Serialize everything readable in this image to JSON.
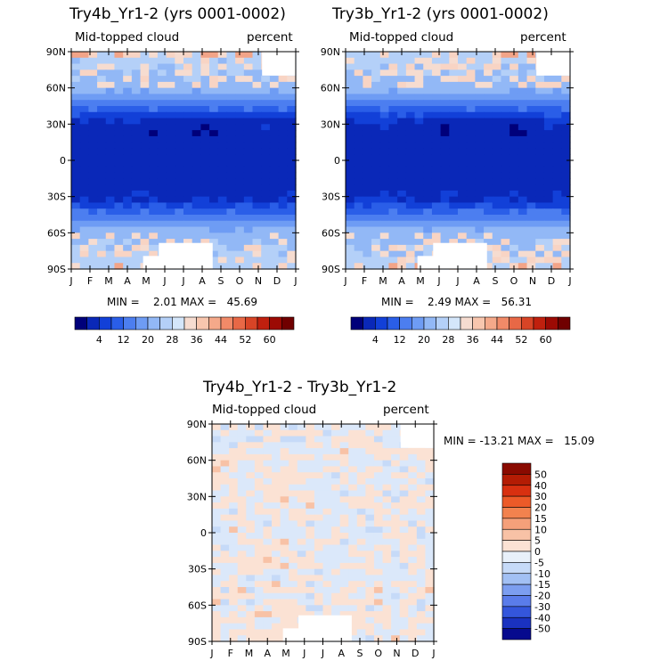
{
  "chart_data": [
    {
      "type": "heatmap",
      "title": "Try4b_Yr1-2 (yrs 0001-0002)",
      "variable": "Mid-topped cloud",
      "units": "percent",
      "x_ticks": [
        "J",
        "F",
        "M",
        "A",
        "M",
        "J",
        "J",
        "A",
        "S",
        "O",
        "N",
        "D",
        "J"
      ],
      "y_ticks": [
        "90N",
        "60N",
        "30N",
        "0",
        "30S",
        "60S",
        "90S"
      ],
      "stats": "MIN =    2.01 MAX =   45.69",
      "colorbar_labels": [
        "4",
        "12",
        "20",
        "28",
        "36",
        "44",
        "52",
        "60"
      ],
      "colorbar_colors": [
        "#00007a",
        "#0a28b8",
        "#1240d8",
        "#2a5ee8",
        "#4c7ef0",
        "#6e9cf4",
        "#92b8f6",
        "#b4d0f8",
        "#d4e6fa",
        "#f6dcd0",
        "#f8c6ae",
        "#f5a98a",
        "#f18a68",
        "#e86846",
        "#d84426",
        "#c0200e",
        "#9c0a04",
        "#700000"
      ],
      "min": 2.01,
      "max": 45.69
    },
    {
      "type": "heatmap",
      "title": "Try3b_Yr1-2 (yrs 0001-0002)",
      "variable": "Mid-topped cloud",
      "units": "percent",
      "x_ticks": [
        "J",
        "F",
        "M",
        "A",
        "M",
        "J",
        "J",
        "A",
        "S",
        "O",
        "N",
        "D",
        "J"
      ],
      "y_ticks": [
        "90N",
        "60N",
        "30N",
        "0",
        "30S",
        "60S",
        "90S"
      ],
      "stats": "MIN =    2.49 MAX =   56.31",
      "colorbar_labels": [
        "4",
        "12",
        "20",
        "28",
        "36",
        "44",
        "52",
        "60"
      ],
      "colorbar_colors": [
        "#00007a",
        "#0a28b8",
        "#1240d8",
        "#2a5ee8",
        "#4c7ef0",
        "#6e9cf4",
        "#92b8f6",
        "#b4d0f8",
        "#d4e6fa",
        "#f6dcd0",
        "#f8c6ae",
        "#f5a98a",
        "#f18a68",
        "#e86846",
        "#d84426",
        "#c0200e",
        "#9c0a04",
        "#700000"
      ],
      "min": 2.49,
      "max": 56.31
    },
    {
      "type": "heatmap",
      "title": "Try4b_Yr1-2 - Try3b_Yr1-2",
      "variable": "Mid-topped cloud",
      "units": "percent",
      "x_ticks": [
        "J",
        "F",
        "M",
        "A",
        "M",
        "J",
        "J",
        "A",
        "S",
        "O",
        "N",
        "D",
        "J"
      ],
      "y_ticks": [
        "90N",
        "60N",
        "30N",
        "0",
        "30S",
        "60S",
        "90S"
      ],
      "stats": "MIN = -13.21 MAX =   15.09",
      "colorbar_labels": [
        "50",
        "40",
        "30",
        "20",
        "15",
        "10",
        "5",
        "0",
        "-5",
        "-10",
        "-15",
        "-20",
        "-30",
        "-40",
        "-50"
      ],
      "colorbar_colors": [
        "#8a0a00",
        "#b41c04",
        "#d83010",
        "#ec5a28",
        "#f2824e",
        "#f5a07a",
        "#f8c2a6",
        "#fbe2d4",
        "#e8f0fa",
        "#c6daf8",
        "#a2c0f4",
        "#7c9ef0",
        "#5a7cea",
        "#3456dc",
        "#1a32c0",
        "#060a8e"
      ],
      "min": -13.21,
      "max": 15.09
    }
  ]
}
